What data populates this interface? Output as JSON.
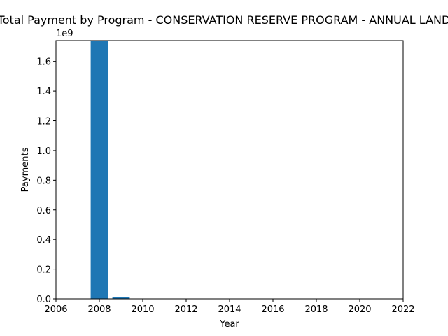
{
  "chart_data": {
    "type": "bar",
    "title": "Total Payment by Program - CONSERVATION RESERVE PROGRAM - ANNUAL LAND",
    "xlabel": "Year",
    "ylabel": "Payments",
    "y_offset_label": "1e9",
    "xlim": [
      2006,
      2022
    ],
    "ylim": [
      0,
      1.74
    ],
    "x_ticks": [
      2006,
      2008,
      2010,
      2012,
      2014,
      2016,
      2018,
      2020,
      2022
    ],
    "y_ticks": [
      0.0,
      0.2,
      0.4,
      0.6,
      0.8,
      1.0,
      1.2,
      1.4,
      1.6
    ],
    "y_tick_labels": [
      "0.0",
      "0.2",
      "0.4",
      "0.6",
      "0.8",
      "1.0",
      "1.2",
      "1.4",
      "1.6"
    ],
    "grid": false,
    "bar_color": "#1f77b4",
    "series": [
      {
        "x": [
          2008,
          2009
        ],
        "values": [
          1.74,
          0.013
        ]
      }
    ]
  }
}
